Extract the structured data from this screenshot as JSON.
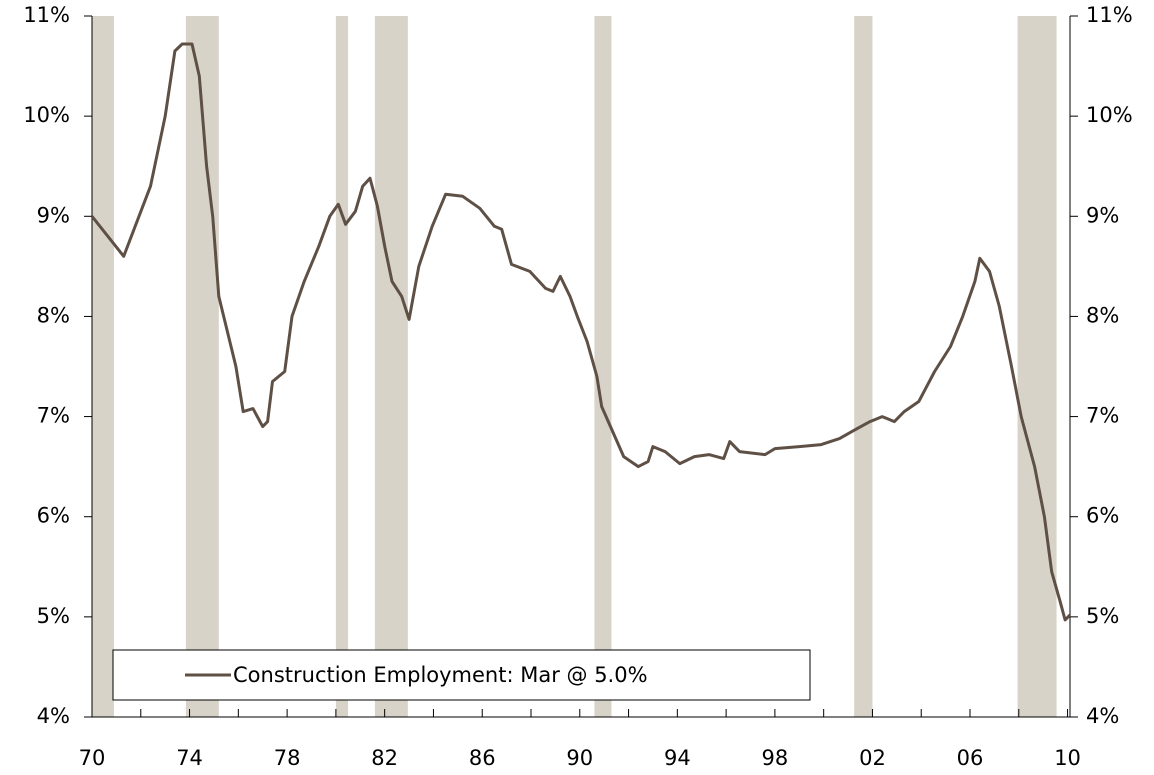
{
  "chart_data": {
    "type": "line",
    "series": [
      {
        "name": "Construction Employment: Mar @ 5.0%",
        "color": "#5f5046",
        "x": [
          1970.0,
          1971.3,
          1972.4,
          1973.0,
          1973.4,
          1973.7,
          1974.1,
          1974.4,
          1974.7,
          1974.95,
          1975.2,
          1975.6,
          1975.9,
          1976.2,
          1976.6,
          1977.0,
          1977.2,
          1977.4,
          1977.9,
          1978.2,
          1978.7,
          1979.3,
          1979.75,
          1980.1,
          1980.4,
          1980.8,
          1981.1,
          1981.4,
          1981.7,
          1982.0,
          1982.3,
          1982.7,
          1983.0,
          1983.4,
          1983.95,
          1984.5,
          1985.2,
          1985.9,
          1986.5,
          1986.8,
          1987.2,
          1987.95,
          1988.6,
          1988.9,
          1989.2,
          1989.6,
          1989.9,
          1990.3,
          1990.7,
          1990.9,
          1991.35,
          1991.8,
          1992.4,
          1992.8,
          1993.0,
          1993.5,
          1994.1,
          1994.7,
          1995.3,
          1995.9,
          1996.15,
          1996.55,
          1997.6,
          1998.0,
          1999.0,
          1999.9,
          2000.65,
          2001.3,
          2001.9,
          2002.4,
          2002.9,
          2003.3,
          2003.9,
          2004.55,
          2005.2,
          2005.7,
          2006.2,
          2006.4,
          2006.8,
          2007.2,
          2007.7,
          2008.1,
          2008.65,
          2009.05,
          2009.35,
          2009.7,
          2009.9,
          2010.1
        ],
        "values": [
          9.0,
          8.6,
          9.3,
          10.0,
          10.65,
          10.72,
          10.72,
          10.4,
          9.5,
          9.0,
          8.2,
          7.8,
          7.5,
          7.05,
          7.08,
          6.9,
          6.95,
          7.35,
          7.45,
          8.0,
          8.35,
          8.7,
          9.0,
          9.12,
          8.92,
          9.05,
          9.3,
          9.38,
          9.1,
          8.7,
          8.35,
          8.2,
          7.97,
          8.5,
          8.9,
          9.22,
          9.2,
          9.08,
          8.9,
          8.87,
          8.52,
          8.45,
          8.28,
          8.25,
          8.4,
          8.2,
          8.0,
          7.75,
          7.4,
          7.1,
          6.85,
          6.6,
          6.5,
          6.55,
          6.7,
          6.65,
          6.53,
          6.6,
          6.62,
          6.58,
          6.75,
          6.65,
          6.62,
          6.68,
          6.7,
          6.72,
          6.78,
          6.87,
          6.95,
          7.0,
          6.95,
          7.05,
          7.15,
          7.45,
          7.7,
          8.0,
          8.35,
          8.58,
          8.45,
          8.1,
          7.5,
          7.0,
          6.5,
          6.0,
          5.45,
          5.15,
          4.97,
          5.02
        ]
      }
    ],
    "recessions": [
      [
        1970.0,
        1970.9
      ],
      [
        1973.85,
        1975.2
      ],
      [
        1980.0,
        1980.5
      ],
      [
        1981.6,
        1982.95
      ],
      [
        1990.6,
        1991.3
      ],
      [
        2001.25,
        2002.0
      ],
      [
        2007.95,
        2009.55
      ]
    ],
    "recession_color": "#d8d3c8",
    "xlim": [
      1970,
      2010.1
    ],
    "xticks": [
      {
        "value": 1970,
        "label": "70"
      },
      {
        "value": 1974,
        "label": "74"
      },
      {
        "value": 1978,
        "label": "78"
      },
      {
        "value": 1982,
        "label": "82"
      },
      {
        "value": 1986,
        "label": "86"
      },
      {
        "value": 1990,
        "label": "90"
      },
      {
        "value": 1994,
        "label": "94"
      },
      {
        "value": 1998,
        "label": "98"
      },
      {
        "value": 2002,
        "label": "02"
      },
      {
        "value": 2006,
        "label": "06"
      },
      {
        "value": 2010,
        "label": "10"
      }
    ],
    "xminor": [
      1972,
      1976,
      1980,
      1984,
      1988,
      1992,
      1996,
      2000,
      2004,
      2008
    ],
    "ylim": [
      4,
      11
    ],
    "yticks": [
      {
        "value": 4,
        "label": "4%"
      },
      {
        "value": 5,
        "label": "5%"
      },
      {
        "value": 6,
        "label": "6%"
      },
      {
        "value": 7,
        "label": "7%"
      },
      {
        "value": 8,
        "label": "8%"
      },
      {
        "value": 9,
        "label": "9%"
      },
      {
        "value": 10,
        "label": "10%"
      },
      {
        "value": 11,
        "label": "11%"
      }
    ],
    "y2lim": [
      4,
      11
    ],
    "y2ticks": [
      {
        "value": 4,
        "label": "4%"
      },
      {
        "value": 5,
        "label": "5%"
      },
      {
        "value": 6,
        "label": "6%"
      },
      {
        "value": 7,
        "label": "7%"
      },
      {
        "value": 8,
        "label": "8%"
      },
      {
        "value": 9,
        "label": "9%"
      },
      {
        "value": 10,
        "label": "10%"
      },
      {
        "value": 11,
        "label": "11%"
      }
    ],
    "legend": "lower left"
  }
}
